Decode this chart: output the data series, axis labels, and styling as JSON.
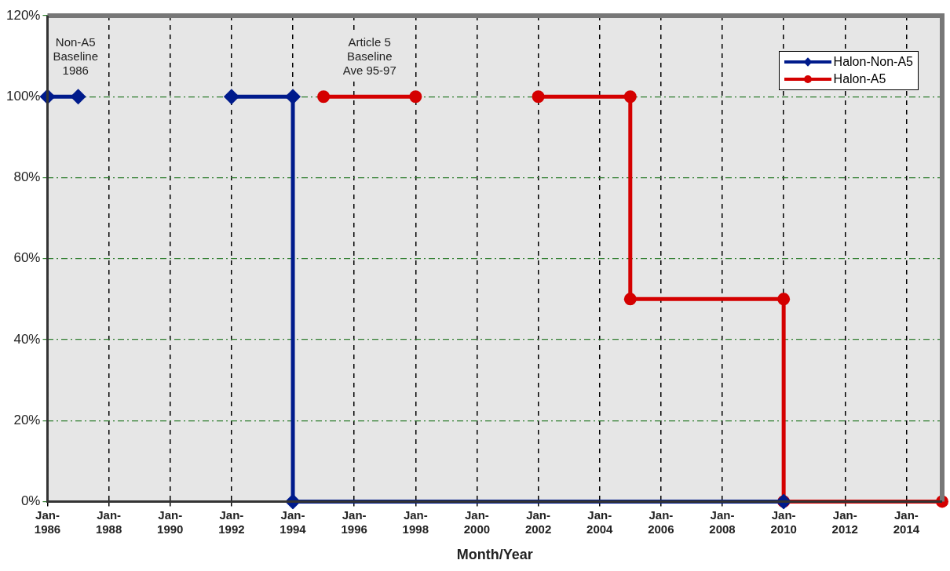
{
  "chart_data": {
    "type": "line",
    "xlabel": "Month/Year",
    "xlim": [
      "1986-01",
      "2015-03"
    ],
    "xticks": [
      {
        "value": "1986-01",
        "label": "Jan-1986"
      },
      {
        "value": "1988-01",
        "label": "Jan-1988"
      },
      {
        "value": "1990-01",
        "label": "Jan-1990"
      },
      {
        "value": "1992-01",
        "label": "Jan-1992"
      },
      {
        "value": "1994-01",
        "label": "Jan-1994"
      },
      {
        "value": "1996-01",
        "label": "Jan-1996"
      },
      {
        "value": "1998-01",
        "label": "Jan-1998"
      },
      {
        "value": "2000-01",
        "label": "Jan-2000"
      },
      {
        "value": "2002-01",
        "label": "Jan-2002"
      },
      {
        "value": "2004-01",
        "label": "Jan-2004"
      },
      {
        "value": "2006-01",
        "label": "Jan-2006"
      },
      {
        "value": "2008-01",
        "label": "Jan-2008"
      },
      {
        "value": "2010-01",
        "label": "Jan-2010"
      },
      {
        "value": "2012-01",
        "label": "Jan-2012"
      },
      {
        "value": "2014-01",
        "label": "Jan-2014"
      }
    ],
    "ylim": [
      0,
      120
    ],
    "yticks": [
      {
        "value": 0,
        "label": "0%"
      },
      {
        "value": 20,
        "label": "20%"
      },
      {
        "value": 40,
        "label": "40%"
      },
      {
        "value": 60,
        "label": "60%"
      },
      {
        "value": 80,
        "label": "80%"
      },
      {
        "value": 100,
        "label": "100%"
      },
      {
        "value": 120,
        "label": "120%"
      }
    ],
    "grid": true,
    "legend": "top right",
    "series": [
      {
        "name": "Halon-Non-A5",
        "color": "#001b8c",
        "marker": "diamond",
        "x": [
          "1986-01",
          "1987-01",
          "1987-02",
          "1992-01",
          "1994-01",
          "1994-01",
          "2010-01"
        ],
        "values": [
          100,
          100,
          null,
          100,
          100,
          0,
          0
        ]
      },
      {
        "name": "Halon-A5",
        "color": "#d40000",
        "marker": "circle",
        "x": [
          "1995-01",
          "1998-01",
          "1998-02",
          "2002-01",
          "2005-01",
          "2005-01",
          "2010-01",
          "2010-01",
          "2015-03"
        ],
        "values": [
          100,
          100,
          null,
          100,
          100,
          50,
          50,
          0,
          0
        ]
      }
    ],
    "annotations": [
      "Non-A5\nBaseline\n1986",
      "Article 5\nBaseline\nAve 95-97"
    ]
  }
}
